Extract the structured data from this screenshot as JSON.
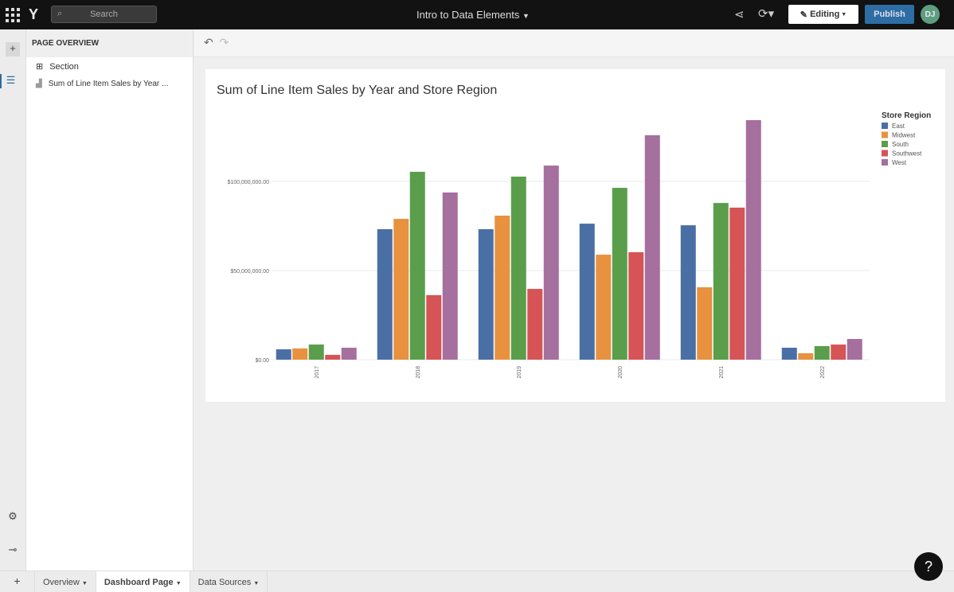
{
  "topbar": {
    "search_placeholder": "Search",
    "title": "Intro to Data Elements",
    "editing_label": "Editing",
    "publish_label": "Publish",
    "avatar_initials": "DJ"
  },
  "panel": {
    "header": "PAGE OVERVIEW",
    "items": [
      {
        "label": "Section",
        "icon": "section-icon"
      },
      {
        "label": "Sum of Line Item Sales by Year ...",
        "icon": "bar-chart-icon"
      }
    ]
  },
  "tabs": [
    {
      "label": "Overview"
    },
    {
      "label": "Dashboard Page",
      "active": true
    },
    {
      "label": "Data Sources"
    }
  ],
  "chart_data": {
    "type": "bar",
    "title": "Sum of Line Item Sales by Year and Store Region",
    "categories": [
      "2017",
      "2018",
      "2019",
      "2020",
      "2021",
      "2022"
    ],
    "ylim": [
      0,
      140000000
    ],
    "yticks": [
      {
        "value": 0,
        "label": "$0.00"
      },
      {
        "value": 50000000,
        "label": "$50,000,000.00"
      },
      {
        "value": 100000000,
        "label": "$100,000,000.00"
      }
    ],
    "grid": true,
    "legend": {
      "title": "Store Region",
      "placement": "top-right"
    },
    "series": [
      {
        "name": "East",
        "color": "#4a6fa5",
        "values": [
          5800000,
          73200000,
          73200000,
          76300000,
          75400000,
          6700000
        ]
      },
      {
        "name": "Midwest",
        "color": "#e8913f",
        "values": [
          6300000,
          79000000,
          80800000,
          58900000,
          40600000,
          3600000
        ]
      },
      {
        "name": "South",
        "color": "#5a9e4b",
        "values": [
          8500000,
          105400000,
          102700000,
          96400000,
          87900000,
          7600000
        ]
      },
      {
        "name": "Southwest",
        "color": "#d75456",
        "values": [
          2700000,
          36200000,
          39700000,
          60300000,
          85300000,
          8500000
        ]
      },
      {
        "name": "West",
        "color": "#a56f9e",
        "values": [
          6700000,
          93800000,
          108900000,
          125900000,
          134400000,
          11600000
        ]
      }
    ]
  }
}
